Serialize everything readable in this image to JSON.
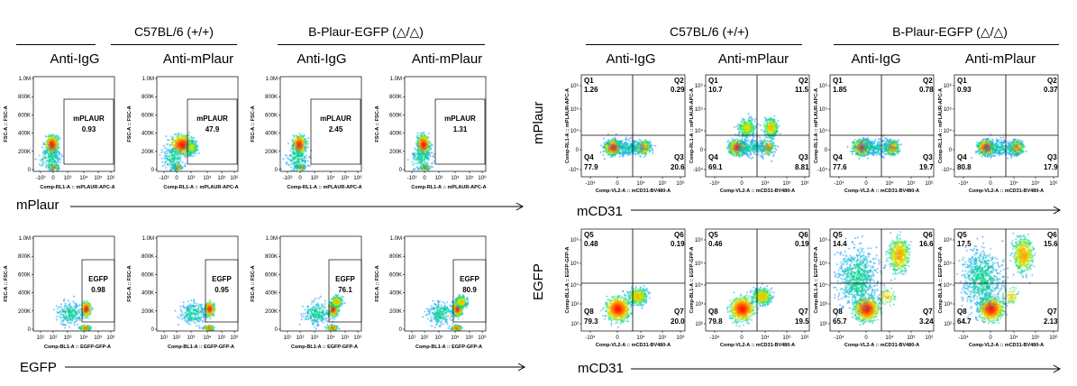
{
  "headers": {
    "left": {
      "group1": "C57BL/6 (+/+)",
      "group2": "B-Plaur-EGFP (△/△)"
    },
    "right": {
      "group1": "C57BL/6 (+/+)",
      "group2": "B-Plaur-EGFP (△/△)"
    },
    "columns": [
      "Anti-IgG",
      "Anti-mPlaur",
      "Anti-IgG",
      "Anti-mPlaur"
    ]
  },
  "side_labels": {
    "left_top_x": "mPlaur",
    "left_bottom_x": "EGFP",
    "right_top_x": "mCD31",
    "right_bottom_x": "mCD31",
    "right_top_y": "mPlaur",
    "right_bottom_y": "EGFP"
  },
  "axis_titles": {
    "fsc_y": "FSC-A :: FSC-A",
    "mplaur_x": "Comp-RL1-A :: mPLAUR-APC-A",
    "egfp_x": "Comp-BL1-A :: EGFP-GFP-A",
    "cd31_x": "Comp-VL2-A :: mCD31-BV480-A",
    "mplaur_y": "Comp-RL1-A :: mPLAUR-APC-A",
    "egfp_y": "Comp-BL1-A :: EGFP-GFP-A"
  },
  "tick_labels": {
    "fsc": [
      "0",
      "200K",
      "400K",
      "600K",
      "800K",
      "1.0M"
    ],
    "mplaur_x": [
      "-10³",
      "0",
      "10³",
      "10⁴",
      "10⁵",
      "10⁶"
    ],
    "egfp_x": [
      "10¹",
      "10²",
      "10³",
      "10⁴",
      "10⁵",
      "10⁶"
    ],
    "cd31_x": [
      "-10⁴",
      "0",
      "10⁴",
      "10⁵",
      "10⁶"
    ],
    "mplaur_y": [
      "-10⁴",
      "0",
      "10⁴",
      "10⁵",
      "10⁶"
    ],
    "egfp_y": [
      "10²",
      "10³",
      "10⁴",
      "10⁵",
      "10⁶"
    ]
  },
  "chart_data": [
    {
      "type": "scatter",
      "panel": "left-mplaur",
      "ylabel": "FSC-A :: FSC-A",
      "xlabel": "Comp-RL1-A :: mPLAUR-APC-A",
      "samples": [
        {
          "group": "C57BL/6 (+/+)",
          "antibody": "Anti-IgG",
          "gate": "mPLAUR",
          "percent": "0.93"
        },
        {
          "group": "C57BL/6 (+/+)",
          "antibody": "Anti-mPlaur",
          "gate": "mPLAUR",
          "percent": "47.9"
        },
        {
          "group": "B-Plaur-EGFP (△/△)",
          "antibody": "Anti-IgG",
          "gate": "mPLAUR",
          "percent": "2.45"
        },
        {
          "group": "B-Plaur-EGFP (△/△)",
          "antibody": "Anti-mPlaur",
          "gate": "mPLAUR",
          "percent": "1.31"
        }
      ]
    },
    {
      "type": "scatter",
      "panel": "left-egfp",
      "ylabel": "FSC-A :: FSC-A",
      "xlabel": "Comp-BL1-A :: EGFP-GFP-A",
      "samples": [
        {
          "group": "C57BL/6 (+/+)",
          "antibody": "Anti-IgG",
          "gate": "EGFP",
          "percent": "0.98"
        },
        {
          "group": "C57BL/6 (+/+)",
          "antibody": "Anti-mPlaur",
          "gate": "EGFP",
          "percent": "0.95"
        },
        {
          "group": "B-Plaur-EGFP (△/△)",
          "antibody": "Anti-IgG",
          "gate": "EGFP",
          "percent": "76.1"
        },
        {
          "group": "B-Plaur-EGFP (△/△)",
          "antibody": "Anti-mPlaur",
          "gate": "EGFP",
          "percent": "80.9"
        }
      ]
    },
    {
      "type": "scatter",
      "panel": "right-mplaur-cd31",
      "ylabel": "Comp-RL1-A :: mPLAUR-APC-A",
      "xlabel": "Comp-VL2-A :: mCD31-BV480-A",
      "samples": [
        {
          "group": "C57BL/6 (+/+)",
          "antibody": "Anti-IgG",
          "quadrants": {
            "Q1": "1.26",
            "Q2": "0.29",
            "Q3": "20.6",
            "Q4": "77.9"
          }
        },
        {
          "group": "C57BL/6 (+/+)",
          "antibody": "Anti-mPlaur",
          "quadrants": {
            "Q1": "10.7",
            "Q2": "11.5",
            "Q3": "8.81",
            "Q4": "69.1"
          }
        },
        {
          "group": "B-Plaur-EGFP (△/△)",
          "antibody": "Anti-IgG",
          "quadrants": {
            "Q1": "1.85",
            "Q2": "0.78",
            "Q3": "19.7",
            "Q4": "77.6"
          }
        },
        {
          "group": "B-Plaur-EGFP (△/△)",
          "antibody": "Anti-mPlaur",
          "quadrants": {
            "Q1": "0.93",
            "Q2": "0.37",
            "Q3": "17.9",
            "Q4": "80.8"
          }
        }
      ]
    },
    {
      "type": "scatter",
      "panel": "right-egfp-cd31",
      "ylabel": "Comp-BL1-A :: EGFP-GFP-A",
      "xlabel": "Comp-VL2-A :: mCD31-BV480-A",
      "samples": [
        {
          "group": "C57BL/6 (+/+)",
          "antibody": "Anti-IgG",
          "quadrants": {
            "Q5": "0.48",
            "Q6": "0.19",
            "Q7": "20.0",
            "Q8": "79.3"
          }
        },
        {
          "group": "C57BL/6 (+/+)",
          "antibody": "Anti-mPlaur",
          "quadrants": {
            "Q5": "0.46",
            "Q6": "0.19",
            "Q7": "19.5",
            "Q8": "79.8"
          }
        },
        {
          "group": "B-Plaur-EGFP (△/△)",
          "antibody": "Anti-IgG",
          "quadrants": {
            "Q5": "14.4",
            "Q6": "16.6",
            "Q7": "3.24",
            "Q8": "65.7"
          }
        },
        {
          "group": "B-Plaur-EGFP (△/△)",
          "antibody": "Anti-mPlaur",
          "quadrants": {
            "Q5": "17.5",
            "Q6": "15.6",
            "Q7": "2.13",
            "Q8": "64.7"
          }
        }
      ]
    }
  ]
}
